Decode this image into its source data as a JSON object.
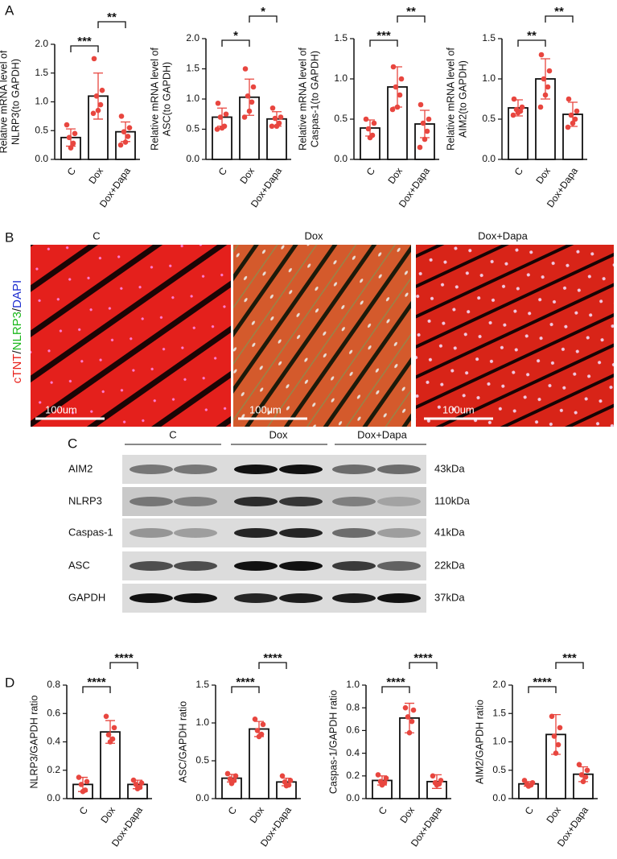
{
  "figure": {
    "panel_labels": [
      "A",
      "B",
      "C",
      "D"
    ],
    "micrographs": {
      "titles": [
        "C",
        "Dox",
        "Dox+Dapa"
      ],
      "scale_bar": "100um",
      "stain": [
        "cTNT",
        "/",
        "NLRP3",
        "/",
        "DAPI"
      ]
    },
    "blot": {
      "groups": [
        "C",
        "Dox",
        "Dox+Dapa"
      ],
      "proteins": [
        "AIM2",
        "NLRP3",
        "Caspas-1",
        "ASC",
        "GAPDH"
      ],
      "sizes": [
        "43kDa",
        "110kDa",
        "41kDa",
        "22kDa",
        "37kDa"
      ]
    }
  },
  "chart_data": [
    {
      "type": "bar",
      "ylabel": [
        "Relative mRNA level of",
        "NLRP3(to GAPDH)"
      ],
      "categories": [
        "C",
        "Dox",
        "Dox+Dapa"
      ],
      "values": [
        0.38,
        1.1,
        0.48
      ],
      "errors": [
        0.15,
        0.4,
        0.17
      ],
      "points": [
        [
          0.6,
          0.45,
          0.38,
          0.28,
          0.2
        ],
        [
          1.75,
          1.2,
          1.1,
          0.95,
          0.85,
          0.8
        ],
        [
          0.75,
          0.55,
          0.48,
          0.4,
          0.3,
          0.25
        ]
      ],
      "significance": [
        "***",
        "**"
      ],
      "color": "#e8463f",
      "ylim": [
        0,
        2.0
      ],
      "yticks": [
        {
          "value": 0,
          "label": "0.0"
        },
        0.5,
        {
          "value": 1,
          "label": "1.0"
        },
        1.5,
        {
          "value": 2,
          "label": "2.0"
        }
      ]
    },
    {
      "type": "bar",
      "ylabel": [
        "Relative mRNA level of",
        "ASC(to GAPDH)"
      ],
      "categories": [
        "C",
        "Dox",
        "Dox+Dapa"
      ],
      "values": [
        0.7,
        1.03,
        0.67
      ],
      "errors": [
        0.15,
        0.3,
        0.12
      ],
      "points": [
        [
          0.93,
          0.75,
          0.7,
          0.55,
          0.52,
          0.5
        ],
        [
          1.5,
          1.2,
          1.05,
          0.95,
          0.8,
          0.7
        ],
        [
          0.85,
          0.7,
          0.68,
          0.6,
          0.55,
          0.55
        ]
      ],
      "significance": [
        "*",
        "*"
      ],
      "color": "#e8463f",
      "ylim": [
        0,
        2.0
      ],
      "yticks": [
        {
          "value": 0,
          "label": "0.0"
        },
        0.5,
        {
          "value": 1,
          "label": "1.0"
        },
        1.5,
        {
          "value": 2,
          "label": "2.0"
        }
      ]
    },
    {
      "type": "bar",
      "ylabel": [
        "Relative mRNA level of",
        "Caspas-1(to GAPDH)"
      ],
      "categories": [
        "C",
        "Dox",
        "Dox+Dapa"
      ],
      "values": [
        0.39,
        0.9,
        0.44
      ],
      "errors": [
        0.1,
        0.25,
        0.17
      ],
      "points": [
        [
          0.5,
          0.45,
          0.38,
          0.3,
          0.27
        ],
        [
          1.15,
          1.0,
          0.9,
          0.8,
          0.65,
          0.62
        ],
        [
          0.68,
          0.5,
          0.45,
          0.35,
          0.25,
          0.15
        ]
      ],
      "significance": [
        "***",
        "**"
      ],
      "color": "#e8463f",
      "ylim": [
        0,
        1.5
      ],
      "yticks": [
        {
          "value": 0,
          "label": "0.0"
        },
        0.5,
        {
          "value": 1,
          "label": "1.0"
        },
        1.5
      ]
    },
    {
      "type": "bar",
      "ylabel": [
        "Relative mRNA level of",
        "AIM2(to GAPDH)"
      ],
      "categories": [
        "C",
        "Dox",
        "Dox+Dapa"
      ],
      "values": [
        0.64,
        1.0,
        0.56
      ],
      "errors": [
        0.1,
        0.25,
        0.15
      ],
      "points": [
        [
          0.75,
          0.65,
          0.62,
          0.6,
          0.58,
          0.55
        ],
        [
          1.3,
          1.1,
          1.0,
          0.9,
          0.8,
          0.65
        ],
        [
          0.75,
          0.6,
          0.55,
          0.5,
          0.45,
          0.4
        ]
      ],
      "significance": [
        "**",
        "**"
      ],
      "color": "#e8463f",
      "ylim": [
        0,
        1.5
      ],
      "yticks": [
        {
          "value": 0,
          "label": "0.0"
        },
        0.5,
        {
          "value": 1,
          "label": "1.0"
        },
        1.5
      ]
    },
    {
      "type": "bar",
      "ylabel": [
        "NLRP3/GAPDH ratio"
      ],
      "categories": [
        "C",
        "Dox",
        "Dox+Dapa"
      ],
      "values": [
        0.1,
        0.47,
        0.1
      ],
      "errors": [
        0.05,
        0.08,
        0.03
      ],
      "points": [
        [
          0.15,
          0.12,
          0.1,
          0.06,
          0.05
        ],
        [
          0.58,
          0.5,
          0.45,
          0.42,
          0.4
        ],
        [
          0.13,
          0.11,
          0.1,
          0.08,
          0.07
        ]
      ],
      "significance": [
        "****",
        "****"
      ],
      "color": "#e8463f",
      "ylim": [
        0,
        0.8
      ],
      "yticks": [
        {
          "value": 0,
          "label": "0.0"
        },
        0.2,
        0.4,
        0.6,
        0.8
      ]
    },
    {
      "type": "bar",
      "ylabel": [
        "ASC/GAPDH ratio"
      ],
      "categories": [
        "C",
        "Dox",
        "Dox+Dapa"
      ],
      "values": [
        0.27,
        0.92,
        0.22
      ],
      "errors": [
        0.05,
        0.1,
        0.05
      ],
      "points": [
        [
          0.33,
          0.3,
          0.26,
          0.24,
          0.2
        ],
        [
          1.05,
          0.98,
          0.9,
          0.85,
          0.82
        ],
        [
          0.3,
          0.24,
          0.22,
          0.18,
          0.17
        ]
      ],
      "significance": [
        "****",
        "****"
      ],
      "color": "#e8463f",
      "ylim": [
        0,
        1.5
      ],
      "yticks": [
        {
          "value": 0,
          "label": "0.0"
        },
        0.5,
        {
          "value": 1,
          "label": "1.0"
        },
        1.5
      ]
    },
    {
      "type": "bar",
      "ylabel": [
        "Caspas-1/GAPDH ratio"
      ],
      "categories": [
        "C",
        "Dox",
        "Dox+Dapa"
      ],
      "values": [
        0.16,
        0.71,
        0.15
      ],
      "errors": [
        0.04,
        0.13,
        0.06
      ],
      "points": [
        [
          0.21,
          0.18,
          0.15,
          0.14,
          0.12
        ],
        [
          0.8,
          0.78,
          0.72,
          0.68,
          0.58
        ],
        [
          0.2,
          0.16,
          0.14,
          0.13,
          0.12
        ]
      ],
      "significance": [
        "****",
        "****"
      ],
      "color": "#e8463f",
      "ylim": [
        0,
        1.0
      ],
      "yticks": [
        {
          "value": 0,
          "label": "0.0"
        },
        0.2,
        0.4,
        0.6,
        0.8,
        {
          "value": 1,
          "label": "1.0"
        }
      ]
    },
    {
      "type": "bar",
      "ylabel": [
        "AIM2/GAPDH ratio"
      ],
      "categories": [
        "C",
        "Dox",
        "Dox+Dapa"
      ],
      "values": [
        0.26,
        1.13,
        0.43
      ],
      "errors": [
        0.04,
        0.35,
        0.13
      ],
      "points": [
        [
          0.32,
          0.28,
          0.25,
          0.24,
          0.22
        ],
        [
          1.45,
          1.25,
          1.1,
          0.95,
          0.8
        ],
        [
          0.6,
          0.5,
          0.42,
          0.38,
          0.3
        ]
      ],
      "significance": [
        "****",
        "***"
      ],
      "color": "#e8463f",
      "ylim": [
        0,
        2.0
      ],
      "yticks": [
        {
          "value": 0,
          "label": "0.0"
        },
        0.5,
        {
          "value": 1,
          "label": "1.0"
        },
        1.5,
        {
          "value": 2,
          "label": "2.0"
        }
      ]
    }
  ]
}
